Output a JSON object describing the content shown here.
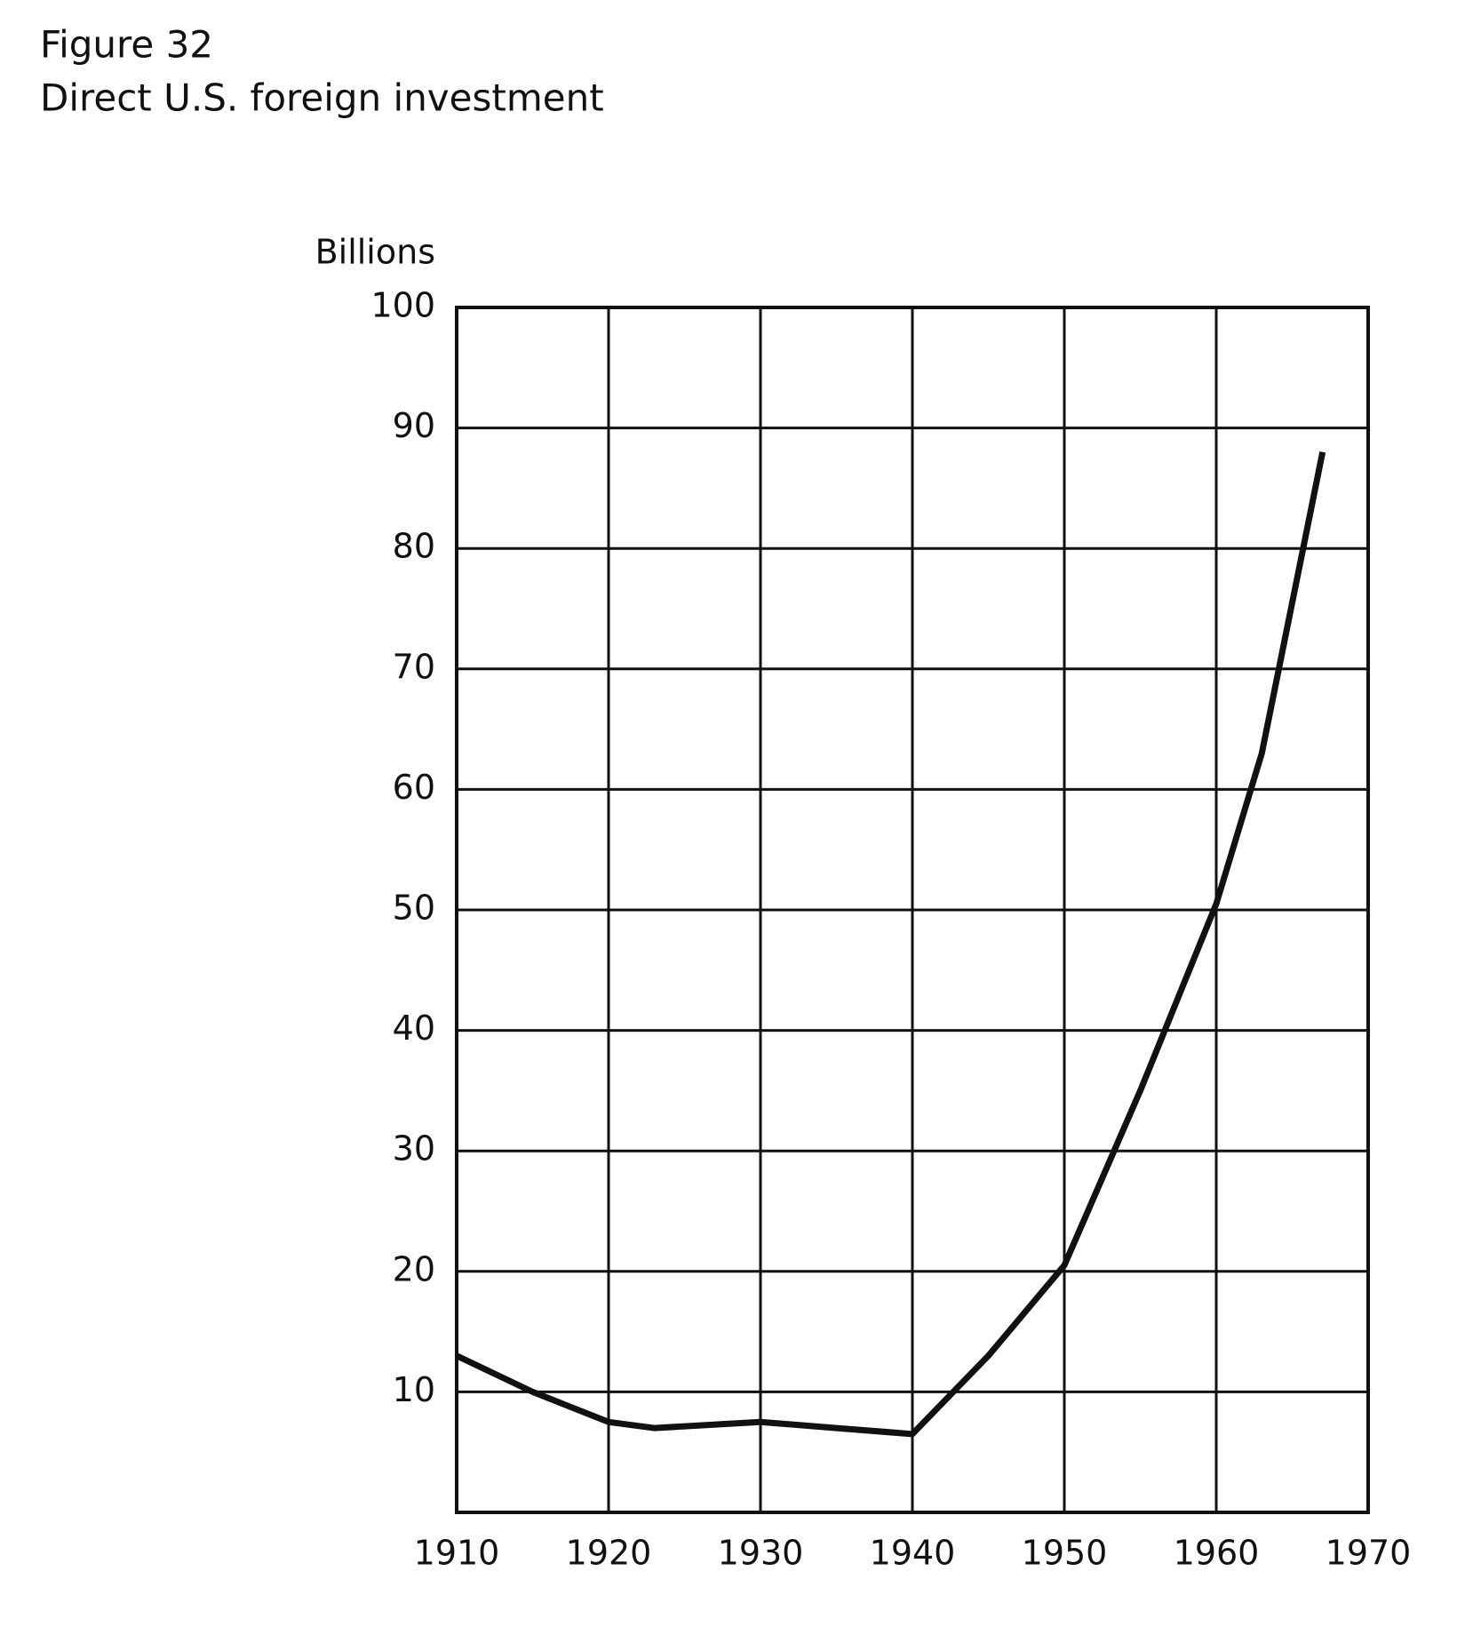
{
  "chart_data": {
    "type": "line",
    "title": "Figure 32",
    "subtitle": "Direct U.S. foreign investment",
    "y_label": "Billions",
    "x": [
      1910,
      1915,
      1920,
      1923,
      1930,
      1935,
      1940,
      1945,
      1950,
      1955,
      1960,
      1963,
      1967
    ],
    "series": [
      {
        "name": "Direct U.S. foreign investment",
        "color": "#111111",
        "values": [
          13,
          10,
          7.5,
          7,
          7.5,
          7,
          6.5,
          13,
          20.5,
          35,
          50.5,
          63,
          88
        ]
      }
    ],
    "xlim": [
      1910,
      1970
    ],
    "xticks": [
      1910,
      1920,
      1930,
      1940,
      1950,
      1960,
      1970
    ],
    "ylim": [
      0,
      100
    ],
    "yticks": [
      10,
      20,
      30,
      40,
      50,
      60,
      70,
      80,
      90,
      100
    ],
    "grid": true
  }
}
